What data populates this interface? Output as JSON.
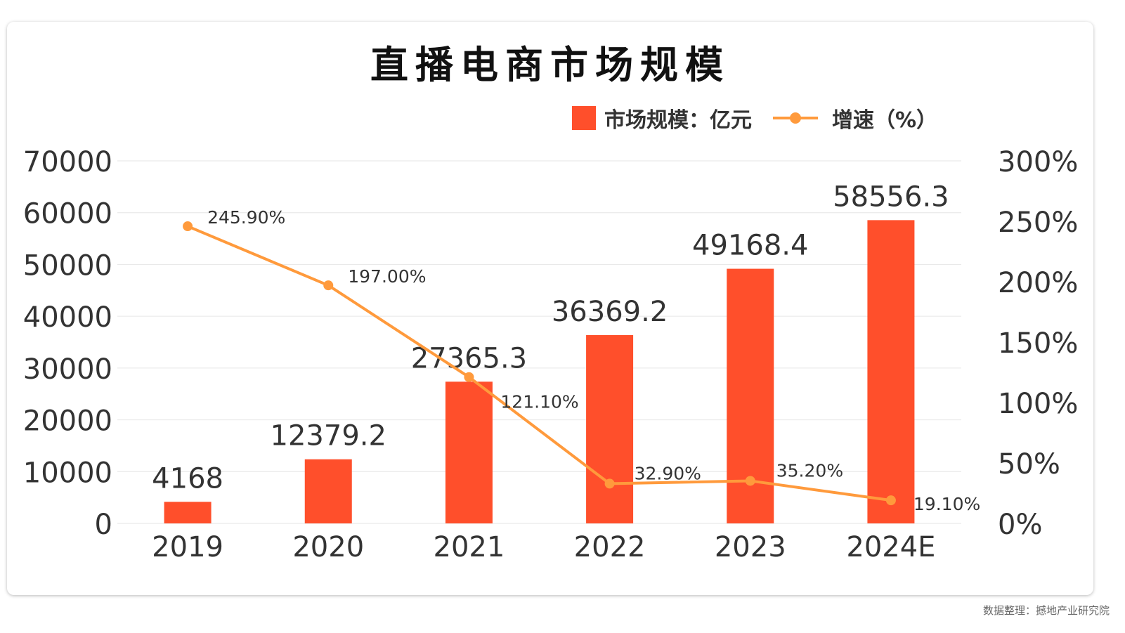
{
  "title": "直播电商市场规模",
  "source": "数据整理：撼地产业研究院",
  "legend": {
    "bar_label": "市场规模：亿元",
    "line_label": "增速（%）"
  },
  "colors": {
    "bar": "#ff4f2b",
    "line": "#ff9a3c",
    "grid": "#e6e6e6",
    "text": "#333333"
  },
  "chart_data": {
    "type": "bar",
    "title": "直播电商市场规模",
    "categories": [
      "2019",
      "2020",
      "2021",
      "2022",
      "2023",
      "2024E"
    ],
    "series": [
      {
        "name": "市场规模：亿元",
        "type": "bar",
        "axis": "left",
        "values": [
          4168,
          12379.2,
          27365.3,
          36369.2,
          49168.4,
          58556.3
        ],
        "labels": [
          "4168",
          "12379.2",
          "27365.3",
          "36369.2",
          "49168.4",
          "58556.3"
        ]
      },
      {
        "name": "增速（%）",
        "type": "line",
        "axis": "right",
        "values": [
          245.9,
          197.0,
          121.1,
          32.9,
          35.2,
          19.1
        ],
        "labels": [
          "245.90%",
          "197.00%",
          "121.10%",
          "32.90%",
          "35.20%",
          "19.10%"
        ]
      }
    ],
    "y_left": {
      "range": [
        0,
        70000
      ],
      "ticks": [
        0,
        10000,
        20000,
        30000,
        40000,
        50000,
        60000,
        70000
      ],
      "tick_labels": [
        "0",
        "10000",
        "20000",
        "30000",
        "40000",
        "50000",
        "60000",
        "70000"
      ]
    },
    "y_right": {
      "range": [
        0,
        300
      ],
      "ticks": [
        0,
        50,
        100,
        150,
        200,
        250,
        300
      ],
      "tick_labels": [
        "0%",
        "50%",
        "100%",
        "150%",
        "200%",
        "250%",
        "300%"
      ]
    },
    "grid": true,
    "legend_position": "top-right"
  }
}
